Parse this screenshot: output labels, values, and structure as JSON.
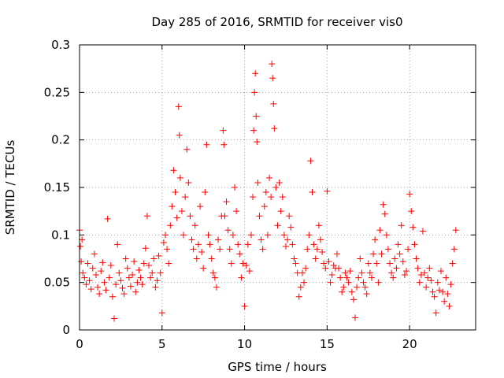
{
  "chart_data": {
    "type": "scatter",
    "marker": "+",
    "title": "Day 285 of 2016, SRMTID for receiver vis0",
    "xlabel": "GPS time / hours",
    "ylabel": "SRMTID / TECUs",
    "xlim": [
      0,
      24
    ],
    "ylim": [
      0,
      0.3
    ],
    "xticks": [
      0,
      5,
      10,
      15,
      20
    ],
    "yticks": [
      0,
      0.05,
      0.1,
      0.15,
      0.2,
      0.25,
      0.3
    ],
    "xtick_labels": [
      "0",
      "5",
      "10",
      "15",
      "20"
    ],
    "ytick_labels": [
      "0",
      "0.05",
      "0.1",
      "0.15",
      "0.2",
      "0.25",
      "0.3"
    ],
    "grid": true,
    "series": [
      {
        "name": "SRMTID",
        "color": "#ff0000",
        "x": [
          0.0,
          0.05,
          0.1,
          0.15,
          0.2,
          0.3,
          0.4,
          0.5,
          0.6,
          0.7,
          0.8,
          0.9,
          1.0,
          1.1,
          1.2,
          1.3,
          1.4,
          1.5,
          1.6,
          1.7,
          1.8,
          1.9,
          2.0,
          2.1,
          2.2,
          2.3,
          2.4,
          2.5,
          2.6,
          2.7,
          2.8,
          2.9,
          3.0,
          3.1,
          3.2,
          3.3,
          3.4,
          3.5,
          3.6,
          3.7,
          3.8,
          3.9,
          4.0,
          4.1,
          4.2,
          4.3,
          4.4,
          4.5,
          4.6,
          4.7,
          4.8,
          4.9,
          5.0,
          5.1,
          5.2,
          5.3,
          5.4,
          5.5,
          5.6,
          5.7,
          5.8,
          5.9,
          6.0,
          6.05,
          6.1,
          6.2,
          6.3,
          6.4,
          6.5,
          6.6,
          6.7,
          6.8,
          6.9,
          7.0,
          7.1,
          7.2,
          7.3,
          7.4,
          7.5,
          7.6,
          7.7,
          7.8,
          7.9,
          8.0,
          8.1,
          8.2,
          8.3,
          8.4,
          8.5,
          8.6,
          8.7,
          8.75,
          8.8,
          8.9,
          9.0,
          9.1,
          9.2,
          9.3,
          9.4,
          9.5,
          9.6,
          9.7,
          9.8,
          9.9,
          10.0,
          10.1,
          10.2,
          10.3,
          10.4,
          10.5,
          10.55,
          10.6,
          10.65,
          10.7,
          10.75,
          10.8,
          10.9,
          11.0,
          11.1,
          11.2,
          11.3,
          11.4,
          11.5,
          11.6,
          11.65,
          11.7,
          11.75,
          11.8,
          11.9,
          12.0,
          12.1,
          12.2,
          12.3,
          12.4,
          12.5,
          12.6,
          12.7,
          12.8,
          12.9,
          13.0,
          13.1,
          13.2,
          13.3,
          13.4,
          13.5,
          13.6,
          13.7,
          13.8,
          13.9,
          14.0,
          14.1,
          14.2,
          14.3,
          14.4,
          14.5,
          14.6,
          14.7,
          14.8,
          14.9,
          15.0,
          15.1,
          15.2,
          15.3,
          15.4,
          15.5,
          15.6,
          15.7,
          15.8,
          15.9,
          16.0,
          16.1,
          16.2,
          16.3,
          16.4,
          16.5,
          16.6,
          16.7,
          16.8,
          16.9,
          17.0,
          17.1,
          17.2,
          17.3,
          17.4,
          17.5,
          17.6,
          17.7,
          17.8,
          17.9,
          18.0,
          18.1,
          18.2,
          18.3,
          18.4,
          18.5,
          18.6,
          18.7,
          18.8,
          18.9,
          19.0,
          19.1,
          19.2,
          19.3,
          19.4,
          19.5,
          19.6,
          19.7,
          19.8,
          19.9,
          20.0,
          20.1,
          20.2,
          20.3,
          20.4,
          20.5,
          20.6,
          20.7,
          20.8,
          20.9,
          21.0,
          21.1,
          21.2,
          21.3,
          21.4,
          21.5,
          21.6,
          21.7,
          21.8,
          21.9,
          22.0,
          22.1,
          22.2,
          22.3,
          22.4,
          22.5,
          22.6,
          22.7,
          22.8
        ],
        "y": [
          0.105,
          0.088,
          0.072,
          0.095,
          0.06,
          0.055,
          0.048,
          0.07,
          0.052,
          0.043,
          0.065,
          0.08,
          0.058,
          0.045,
          0.038,
          0.062,
          0.071,
          0.05,
          0.042,
          0.117,
          0.055,
          0.068,
          0.035,
          0.012,
          0.048,
          0.09,
          0.06,
          0.052,
          0.044,
          0.038,
          0.075,
          0.065,
          0.055,
          0.046,
          0.058,
          0.072,
          0.04,
          0.05,
          0.063,
          0.055,
          0.048,
          0.07,
          0.086,
          0.12,
          0.068,
          0.055,
          0.06,
          0.075,
          0.045,
          0.052,
          0.078,
          0.06,
          0.018,
          0.092,
          0.1,
          0.085,
          0.07,
          0.11,
          0.13,
          0.168,
          0.145,
          0.118,
          0.235,
          0.205,
          0.16,
          0.125,
          0.1,
          0.14,
          0.19,
          0.155,
          0.12,
          0.095,
          0.085,
          0.11,
          0.075,
          0.09,
          0.13,
          0.082,
          0.065,
          0.145,
          0.195,
          0.1,
          0.09,
          0.075,
          0.06,
          0.055,
          0.045,
          0.095,
          0.085,
          0.12,
          0.21,
          0.195,
          0.12,
          0.135,
          0.105,
          0.085,
          0.07,
          0.1,
          0.15,
          0.125,
          0.09,
          0.08,
          0.055,
          0.07,
          0.025,
          0.068,
          0.09,
          0.062,
          0.1,
          0.14,
          0.21,
          0.25,
          0.27,
          0.225,
          0.198,
          0.155,
          0.12,
          0.095,
          0.085,
          0.13,
          0.145,
          0.1,
          0.16,
          0.14,
          0.28,
          0.265,
          0.238,
          0.212,
          0.15,
          0.11,
          0.155,
          0.125,
          0.14,
          0.1,
          0.088,
          0.095,
          0.12,
          0.108,
          0.09,
          0.075,
          0.07,
          0.06,
          0.035,
          0.045,
          0.06,
          0.05,
          0.065,
          0.085,
          0.1,
          0.178,
          0.145,
          0.09,
          0.075,
          0.085,
          0.11,
          0.095,
          0.082,
          0.07,
          0.065,
          0.146,
          0.072,
          0.05,
          0.058,
          0.068,
          0.065,
          0.08,
          0.065,
          0.055,
          0.04,
          0.045,
          0.06,
          0.055,
          0.05,
          0.062,
          0.04,
          0.032,
          0.013,
          0.045,
          0.055,
          0.075,
          0.06,
          0.05,
          0.045,
          0.038,
          0.07,
          0.06,
          0.055,
          0.08,
          0.095,
          0.07,
          0.05,
          0.105,
          0.08,
          0.132,
          0.122,
          0.1,
          0.085,
          0.07,
          0.06,
          0.055,
          0.075,
          0.065,
          0.09,
          0.08,
          0.11,
          0.072,
          0.058,
          0.062,
          0.085,
          0.143,
          0.125,
          0.108,
          0.09,
          0.075,
          0.065,
          0.05,
          0.058,
          0.104,
          0.06,
          0.045,
          0.055,
          0.065,
          0.052,
          0.04,
          0.035,
          0.018,
          0.05,
          0.042,
          0.062,
          0.04,
          0.03,
          0.055,
          0.038,
          0.025,
          0.048,
          0.07,
          0.085,
          0.105
        ]
      }
    ]
  }
}
